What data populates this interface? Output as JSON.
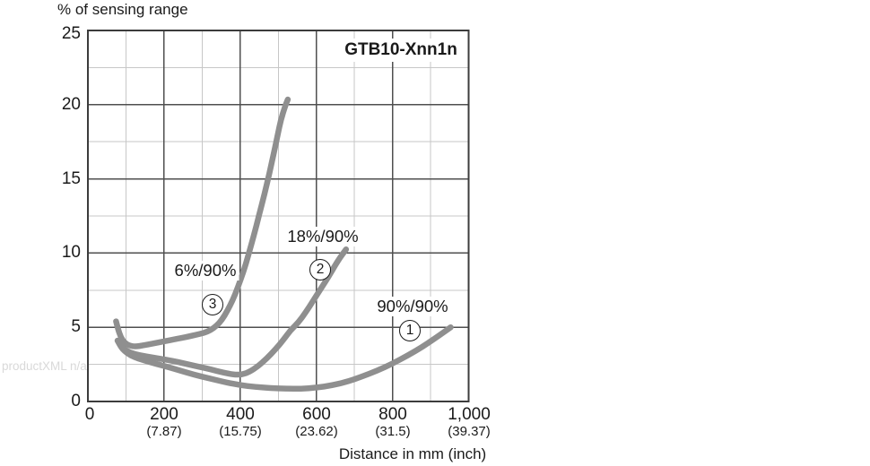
{
  "watermark": "productXML n/a",
  "chart_data": {
    "type": "line",
    "title": "GTB10-Xnn1n",
    "y_axis_title": "% of sensing range",
    "x_axis_title": "Distance in mm (inch)",
    "xlim": [
      0,
      1000
    ],
    "ylim": [
      0,
      25
    ],
    "x_major_step": 200,
    "x_minor_step": 100,
    "y_major_step": 5,
    "y_minor_step": 2.5,
    "grid": "major+minor",
    "legend_position": "inline-annotations",
    "y_ticks": [
      "25",
      "20",
      "15",
      "10",
      "5",
      "0"
    ],
    "x_ticks": [
      {
        "mm": "0",
        "inch": ""
      },
      {
        "mm": "200",
        "inch": "(7.87)"
      },
      {
        "mm": "400",
        "inch": "(15.75)"
      },
      {
        "mm": "600",
        "inch": "(23.62)"
      },
      {
        "mm": "800",
        "inch": "(31.5)"
      },
      {
        "mm": "1,000",
        "inch": "(39.37)"
      }
    ],
    "series": [
      {
        "name": "90%/90%",
        "marker": "1",
        "points": [
          [
            78,
            4.1
          ],
          [
            86,
            3.7
          ],
          [
            96,
            3.4
          ],
          [
            112,
            3.1
          ],
          [
            132,
            2.9
          ],
          [
            162,
            2.65
          ],
          [
            200,
            2.4
          ],
          [
            240,
            2.1
          ],
          [
            280,
            1.8
          ],
          [
            320,
            1.55
          ],
          [
            360,
            1.3
          ],
          [
            400,
            1.1
          ],
          [
            440,
            0.98
          ],
          [
            480,
            0.9
          ],
          [
            520,
            0.86
          ],
          [
            560,
            0.86
          ],
          [
            600,
            0.93
          ],
          [
            640,
            1.08
          ],
          [
            680,
            1.32
          ],
          [
            720,
            1.68
          ],
          [
            760,
            2.08
          ],
          [
            800,
            2.55
          ],
          [
            840,
            3.1
          ],
          [
            880,
            3.7
          ],
          [
            917,
            4.35
          ],
          [
            953,
            5.0
          ]
        ]
      },
      {
        "name": "18%/90%",
        "marker": "2",
        "points": [
          [
            78,
            4.1
          ],
          [
            88,
            3.7
          ],
          [
            102,
            3.4
          ],
          [
            122,
            3.2
          ],
          [
            150,
            3.05
          ],
          [
            185,
            2.9
          ],
          [
            220,
            2.75
          ],
          [
            255,
            2.55
          ],
          [
            290,
            2.35
          ],
          [
            325,
            2.15
          ],
          [
            355,
            1.95
          ],
          [
            385,
            1.8
          ],
          [
            405,
            1.82
          ],
          [
            425,
            2.0
          ],
          [
            448,
            2.4
          ],
          [
            470,
            2.9
          ],
          [
            492,
            3.5
          ],
          [
            512,
            4.1
          ],
          [
            532,
            4.8
          ],
          [
            552,
            5.3
          ],
          [
            572,
            6.0
          ],
          [
            592,
            6.8
          ],
          [
            612,
            7.6
          ],
          [
            632,
            8.4
          ],
          [
            650,
            9.2
          ],
          [
            665,
            9.8
          ],
          [
            678,
            10.25
          ]
        ]
      },
      {
        "name": "6%/90%",
        "marker": "3",
        "points": [
          [
            74,
            5.4
          ],
          [
            79,
            4.9
          ],
          [
            86,
            4.35
          ],
          [
            96,
            3.95
          ],
          [
            110,
            3.75
          ],
          [
            125,
            3.7
          ],
          [
            145,
            3.78
          ],
          [
            170,
            3.9
          ],
          [
            200,
            4.05
          ],
          [
            230,
            4.2
          ],
          [
            260,
            4.35
          ],
          [
            285,
            4.5
          ],
          [
            305,
            4.62
          ],
          [
            322,
            4.8
          ],
          [
            338,
            5.1
          ],
          [
            352,
            5.5
          ],
          [
            366,
            6.1
          ],
          [
            380,
            6.8
          ],
          [
            394,
            7.7
          ],
          [
            408,
            8.7
          ],
          [
            422,
            9.9
          ],
          [
            436,
            11.2
          ],
          [
            450,
            12.6
          ],
          [
            464,
            14.0
          ],
          [
            477,
            15.4
          ],
          [
            488,
            16.7
          ],
          [
            498,
            17.9
          ],
          [
            507,
            19.0
          ],
          [
            518,
            19.9
          ],
          [
            525,
            20.35
          ]
        ]
      }
    ],
    "style": {
      "curve_color": "#8f8f8f",
      "major_grid_color": "#4f4f4f",
      "minor_grid_color": "#c7c7c7",
      "border_color": "#3c3c3c",
      "text_color": "#1a1a1a",
      "watermark_color": "#d9d9d9",
      "background": "#ffffff"
    }
  }
}
